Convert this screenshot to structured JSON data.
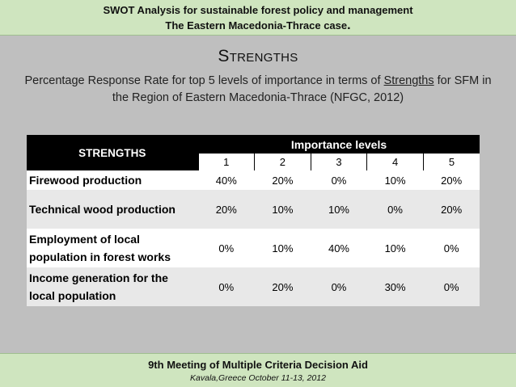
{
  "header": {
    "line1": "SWOT Analysis for sustainable forest policy and management",
    "line2": "The Eastern Macedonia-Thrace case",
    "line2_end": "."
  },
  "title": "Strengths",
  "subtitle": {
    "part1": "Percentage Response Rate for top 5 levels of importance in terms of ",
    "underlined": "Strengths",
    "part2": " for SFM in the Region of Eastern Macedonia-Thrace (NFGC, 2012)"
  },
  "table": {
    "corner_header": "STRENGTHS",
    "group_header": "Importance levels",
    "levels": [
      "1",
      "2",
      "3",
      "4",
      "5"
    ],
    "rows": [
      {
        "label": "Firewood production",
        "values": [
          "40%",
          "20%",
          "0%",
          "10%",
          "20%"
        ]
      },
      {
        "label": "Technical wood production",
        "values": [
          "20%",
          "10%",
          "10%",
          "0%",
          "20%"
        ]
      },
      {
        "label": "Employment of local population in forest works",
        "values": [
          "0%",
          "10%",
          "40%",
          "10%",
          "0%"
        ]
      },
      {
        "label": "Income generation for the local population",
        "values": [
          "0%",
          "20%",
          "0%",
          "30%",
          "0%"
        ]
      }
    ]
  },
  "footer": {
    "line1": "9th Meeting of Multiple Criteria Decision Aid",
    "line2": "Kavala,Greece October 11-13, 2012"
  }
}
